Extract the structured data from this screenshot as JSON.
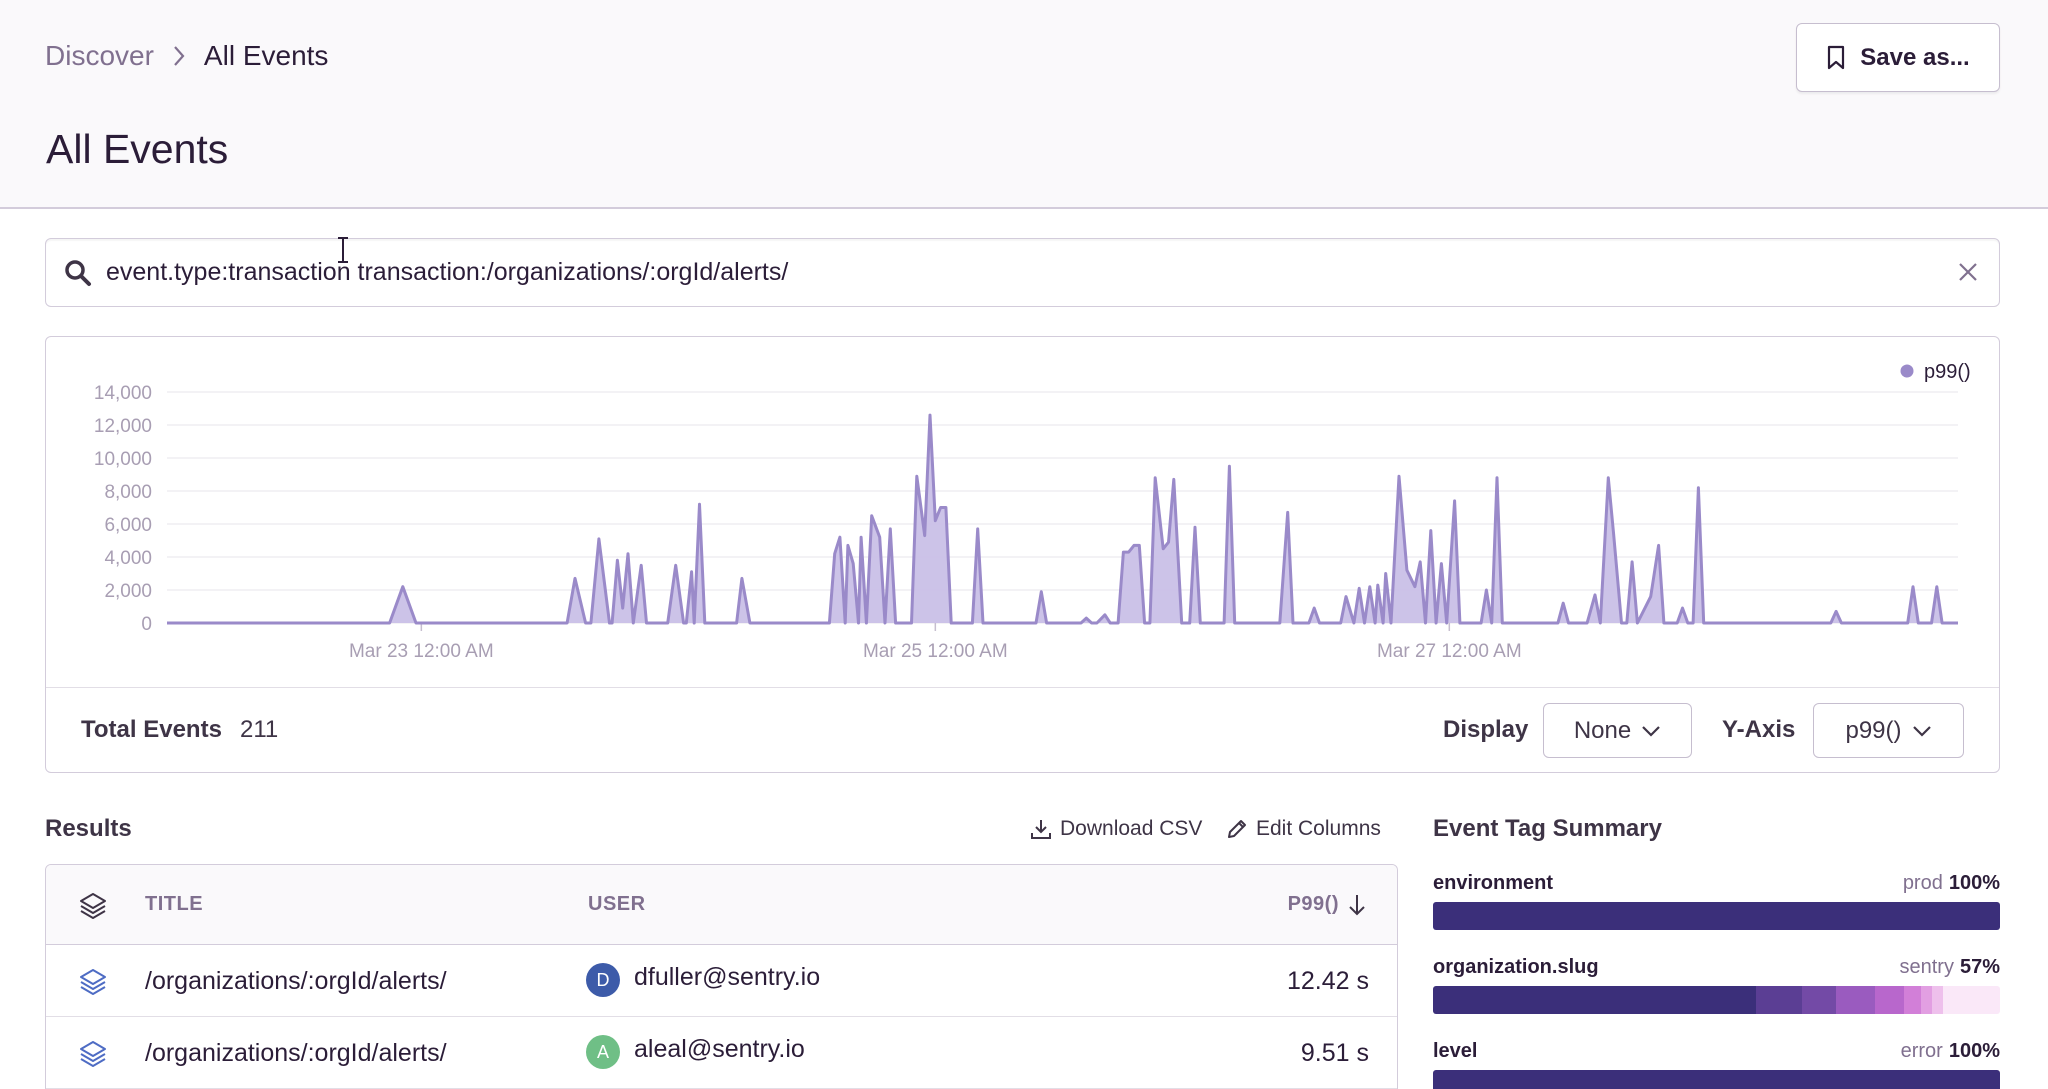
{
  "breadcrumb": {
    "parent": "Discover",
    "current": "All Events"
  },
  "page_title": "All Events",
  "save_button": "Save as...",
  "search": {
    "value": "event.type:transaction transaction:/organizations/:orgId/alerts/"
  },
  "colors": {
    "accent": "#6c5fc7",
    "series": "#9a8ac9",
    "fill": "#c7bde6",
    "bar_dark": "#3b2f7a"
  },
  "chart_data": {
    "type": "area",
    "title": "",
    "legend": {
      "entries": [
        "p99()"
      ],
      "position": "top-right"
    },
    "ylim": [
      0,
      14000
    ],
    "yticks": [
      "0",
      "2,000",
      "4,000",
      "6,000",
      "8,000",
      "10,000",
      "12,000",
      "14,000"
    ],
    "xticks": [
      "Mar 23 12:00 AM",
      "Mar 25 12:00 AM",
      "Mar 27 12:00 AM"
    ],
    "grid": true,
    "series": [
      {
        "name": "p99()",
        "points": [
          [
            0,
            0
          ],
          [
            8.4,
            0
          ],
          [
            8.9,
            2200
          ],
          [
            9.4,
            0
          ],
          [
            15.1,
            0
          ],
          [
            15.4,
            2700
          ],
          [
            15.8,
            0
          ],
          [
            16.0,
            0
          ],
          [
            16.3,
            5100
          ],
          [
            16.7,
            0
          ],
          [
            16.8,
            0
          ],
          [
            17.0,
            3800
          ],
          [
            17.2,
            900
          ],
          [
            17.4,
            4200
          ],
          [
            17.6,
            0
          ],
          [
            17.9,
            3500
          ],
          [
            18.1,
            0
          ],
          [
            18.9,
            0
          ],
          [
            19.2,
            3500
          ],
          [
            19.5,
            0
          ],
          [
            19.6,
            0
          ],
          [
            19.8,
            3100
          ],
          [
            19.9,
            0
          ],
          [
            20.1,
            7200
          ],
          [
            20.3,
            0
          ],
          [
            21.5,
            0
          ],
          [
            21.7,
            2700
          ],
          [
            22.0,
            0
          ],
          [
            25.0,
            0
          ],
          [
            25.2,
            4200
          ],
          [
            25.4,
            5200
          ],
          [
            25.6,
            0
          ],
          [
            25.7,
            4700
          ],
          [
            25.9,
            3600
          ],
          [
            26.1,
            0
          ],
          [
            26.2,
            5200
          ],
          [
            26.4,
            0
          ],
          [
            26.6,
            6500
          ],
          [
            26.9,
            5200
          ],
          [
            27.1,
            0
          ],
          [
            27.3,
            5700
          ],
          [
            27.5,
            0
          ],
          [
            28.1,
            0
          ],
          [
            28.3,
            8900
          ],
          [
            28.6,
            5300
          ],
          [
            28.8,
            12600
          ],
          [
            29.0,
            6200
          ],
          [
            29.2,
            7000
          ],
          [
            29.4,
            7000
          ],
          [
            29.6,
            0
          ],
          [
            30.4,
            0
          ],
          [
            30.6,
            5700
          ],
          [
            30.8,
            0
          ],
          [
            32.8,
            0
          ],
          [
            33.0,
            1900
          ],
          [
            33.2,
            0
          ],
          [
            34.5,
            0
          ],
          [
            34.7,
            300
          ],
          [
            34.9,
            0
          ],
          [
            35.1,
            0
          ],
          [
            35.4,
            500
          ],
          [
            35.6,
            0
          ],
          [
            35.9,
            0
          ],
          [
            36.1,
            4300
          ],
          [
            36.3,
            4300
          ],
          [
            36.5,
            4700
          ],
          [
            36.7,
            4700
          ],
          [
            36.9,
            0
          ],
          [
            37.1,
            0
          ],
          [
            37.3,
            8800
          ],
          [
            37.6,
            4500
          ],
          [
            37.8,
            4900
          ],
          [
            38.0,
            8700
          ],
          [
            38.3,
            0
          ],
          [
            38.6,
            0
          ],
          [
            38.8,
            5800
          ],
          [
            39.0,
            0
          ],
          [
            39.9,
            0
          ],
          [
            40.1,
            9500
          ],
          [
            40.3,
            0
          ],
          [
            42.0,
            0
          ],
          [
            42.3,
            6700
          ],
          [
            42.5,
            0
          ],
          [
            43.1,
            0
          ],
          [
            43.3,
            900
          ],
          [
            43.5,
            0
          ],
          [
            44.3,
            0
          ],
          [
            44.5,
            1600
          ],
          [
            44.8,
            0
          ],
          [
            45.0,
            2100
          ],
          [
            45.2,
            0
          ],
          [
            45.4,
            2200
          ],
          [
            45.6,
            0
          ],
          [
            45.7,
            2300
          ],
          [
            45.9,
            0
          ],
          [
            46.0,
            3000
          ],
          [
            46.2,
            0
          ],
          [
            46.5,
            8900
          ],
          [
            46.8,
            3200
          ],
          [
            47.1,
            2200
          ],
          [
            47.3,
            3700
          ],
          [
            47.5,
            0
          ],
          [
            47.7,
            5600
          ],
          [
            47.9,
            0
          ],
          [
            48.1,
            3600
          ],
          [
            48.3,
            0
          ],
          [
            48.6,
            7400
          ],
          [
            48.8,
            0
          ],
          [
            49.6,
            0
          ],
          [
            49.8,
            2000
          ],
          [
            50.0,
            0
          ],
          [
            50.2,
            8800
          ],
          [
            50.4,
            0
          ],
          [
            52.5,
            0
          ],
          [
            52.7,
            1200
          ],
          [
            52.9,
            0
          ],
          [
            53.6,
            0
          ],
          [
            53.9,
            1700
          ],
          [
            54.1,
            0
          ],
          [
            54.4,
            8800
          ],
          [
            54.6,
            5400
          ],
          [
            54.9,
            0
          ],
          [
            55.1,
            0
          ],
          [
            55.3,
            3700
          ],
          [
            55.5,
            0
          ],
          [
            56.0,
            1600
          ],
          [
            56.3,
            4700
          ],
          [
            56.5,
            0
          ],
          [
            57.0,
            0
          ],
          [
            57.2,
            900
          ],
          [
            57.4,
            0
          ],
          [
            57.6,
            0
          ],
          [
            57.8,
            8200
          ],
          [
            58.0,
            0
          ],
          [
            62.8,
            0
          ],
          [
            63.0,
            700
          ],
          [
            63.2,
            0
          ],
          [
            65.7,
            0
          ],
          [
            65.9,
            2200
          ],
          [
            66.1,
            0
          ],
          [
            66.6,
            0
          ],
          [
            66.8,
            2200
          ],
          [
            67.0,
            0
          ],
          [
            67.6,
            0
          ]
        ]
      }
    ]
  },
  "footer": {
    "total_label": "Total Events",
    "total_value": "211",
    "display_label": "Display",
    "display_value": "None",
    "yaxis_label": "Y-Axis",
    "yaxis_value": "p99()"
  },
  "results": {
    "title": "Results",
    "download": "Download CSV",
    "edit": "Edit Columns",
    "columns": [
      "TITLE",
      "USER",
      "P99()"
    ],
    "rows": [
      {
        "title": "/organizations/:orgId/alerts/",
        "avatar": "D",
        "avatar_color": "#3d5ba9",
        "user": "dfuller@sentry.io",
        "p99": "12.42 s"
      },
      {
        "title": "/organizations/:orgId/alerts/",
        "avatar": "A",
        "avatar_color": "#6fbf86",
        "user": "aleal@sentry.io",
        "p99": "9.51 s"
      }
    ]
  },
  "tags": {
    "title": "Event Tag Summary",
    "items": [
      {
        "key": "environment",
        "value": "prod",
        "pct": "100%",
        "segments": [
          {
            "share": 100,
            "color": "#3b2f7a"
          }
        ]
      },
      {
        "key": "organization.slug",
        "value": "sentry",
        "pct": "57%",
        "segments": [
          {
            "share": 57,
            "color": "#3b2f7a"
          },
          {
            "share": 8,
            "color": "#5b3e94"
          },
          {
            "share": 6,
            "color": "#734aa6"
          },
          {
            "share": 7,
            "color": "#9a5bbf"
          },
          {
            "share": 5,
            "color": "#b867cc"
          },
          {
            "share": 3,
            "color": "#d27fd8"
          },
          {
            "share": 2,
            "color": "#e29fe2"
          },
          {
            "share": 2,
            "color": "#eec0ec"
          },
          {
            "share": 10,
            "color": "#fae8f8"
          }
        ]
      },
      {
        "key": "level",
        "value": "error",
        "pct": "100%",
        "segments": [
          {
            "share": 100,
            "color": "#3b2f7a"
          }
        ]
      }
    ]
  }
}
